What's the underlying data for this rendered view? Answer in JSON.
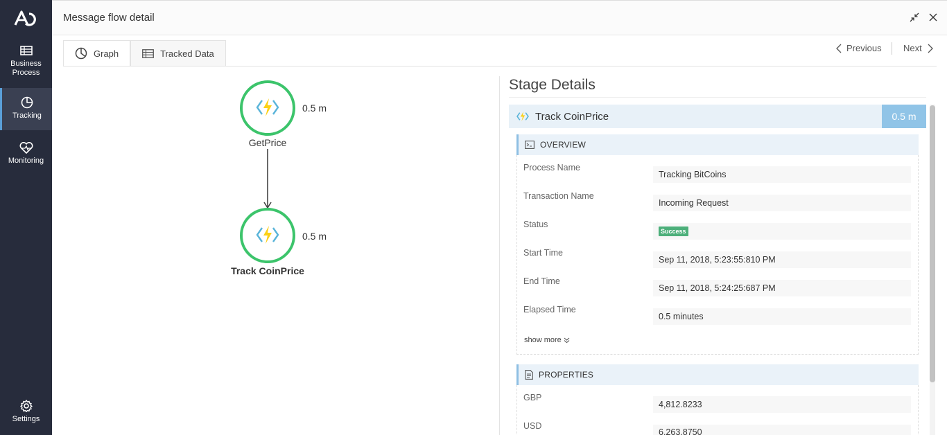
{
  "sidebar": {
    "logo": "app-logo",
    "items": [
      {
        "label": "Business Process",
        "line1": "Business",
        "line2": "Process",
        "icon": "business-process-icon"
      },
      {
        "label": "Tracking",
        "icon": "tracking-icon"
      },
      {
        "label": "Monitoring",
        "icon": "monitoring-icon"
      }
    ],
    "settings_label": "Settings"
  },
  "header": {
    "title": "Message flow detail",
    "minimize_icon": "minimize-icon",
    "close_icon": "close-icon"
  },
  "tabs": [
    {
      "label": "Graph",
      "icon": "pie-chart-icon",
      "active": true
    },
    {
      "label": "Tracked Data",
      "icon": "table-icon",
      "active": false
    }
  ],
  "pager": {
    "previous_label": "Previous",
    "next_label": "Next"
  },
  "graph": {
    "nodes": [
      {
        "name": "GetPrice",
        "duration": "0.5 m",
        "icon": "azure-function-icon",
        "selected": false
      },
      {
        "name": "Track CoinPrice",
        "duration": "0.5 m",
        "icon": "azure-function-icon",
        "selected": true
      }
    ],
    "node_color": "#3cc46b"
  },
  "stage": {
    "heading": "Stage Details",
    "name": "Track CoinPrice",
    "duration": "0.5 m",
    "overview": {
      "title": "OVERVIEW",
      "fields": [
        {
          "label": "Process Name",
          "value": "Tracking BitCoins"
        },
        {
          "label": "Transaction Name",
          "value": "Incoming Request"
        },
        {
          "label": "Status",
          "value": "Success"
        },
        {
          "label": "Start Time",
          "value": "Sep 11, 2018, 5:23:55:810 PM"
        },
        {
          "label": "End Time",
          "value": "Sep 11, 2018, 5:24:25:687 PM"
        },
        {
          "label": "Elapsed Time",
          "value": "0.5 minutes"
        }
      ],
      "show_more": "show more"
    },
    "properties": {
      "title": "PROPERTIES",
      "fields": [
        {
          "label": "GBP",
          "value": "4,812.8233"
        },
        {
          "label": "USD",
          "value": "6,263.8750"
        }
      ]
    }
  },
  "colors": {
    "sidebar_bg": "#272c3c",
    "accent": "#90c4e7",
    "success": "#4caf7a"
  }
}
